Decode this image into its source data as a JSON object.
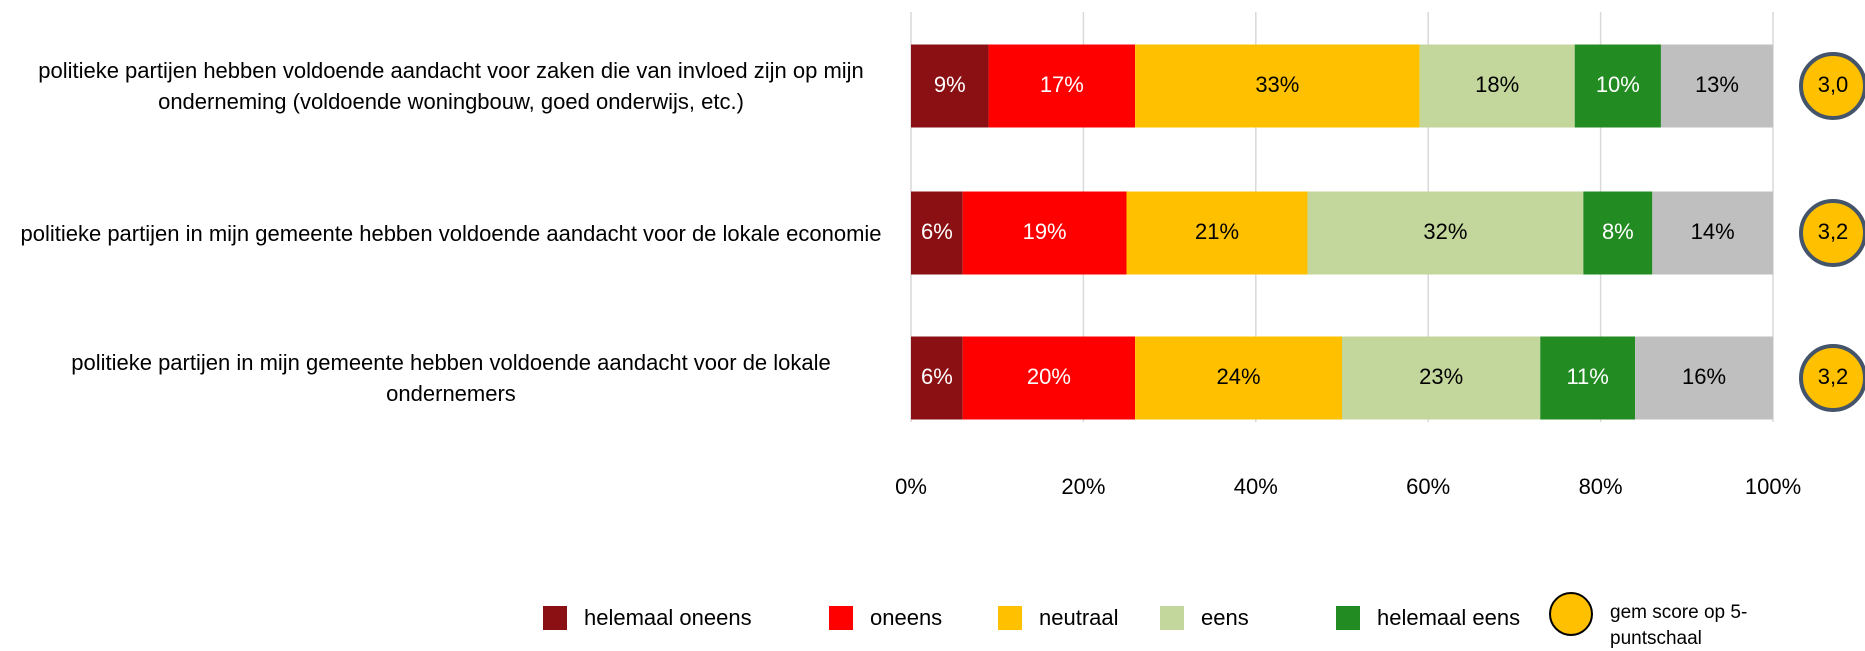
{
  "chart_data": {
    "type": "stacked_bar_horizontal",
    "categories": [
      "politieke partijen hebben voldoende aandacht voor zaken die van invloed zijn op mijn onderneming (voldoende woningbouw, goed onderwijs, etc.)",
      "politieke partijen in mijn gemeente hebben voldoende aandacht voor de lokale economie",
      "politieke partijen in mijn gemeente hebben voldoende aandacht voor de lokale ondernemers"
    ],
    "series": [
      {
        "name": "helemaal oneens",
        "color": "#8b1014",
        "values": [
          9,
          6,
          6
        ],
        "value_labels": [
          "9%",
          "6%",
          "6%"
        ]
      },
      {
        "name": "oneens",
        "color": "#ff0000",
        "values": [
          17,
          19,
          20
        ],
        "value_labels": [
          "17%",
          "19%",
          "20%"
        ]
      },
      {
        "name": "neutraal",
        "color": "#ffc000",
        "values": [
          33,
          21,
          24
        ],
        "value_labels": [
          "33%",
          "21%",
          "24%"
        ]
      },
      {
        "name": "eens",
        "color": "#c3d69b",
        "values": [
          18,
          32,
          23
        ],
        "value_labels": [
          "18%",
          "32%",
          "23%"
        ]
      },
      {
        "name": "helemaal eens",
        "color": "#228b22",
        "values": [
          10,
          8,
          11
        ],
        "value_labels": [
          "10%",
          "8%",
          "11%"
        ]
      },
      {
        "name": null,
        "color": "#bfbfbf",
        "values": [
          13,
          14,
          16
        ],
        "value_labels": [
          "13%",
          "14%",
          "16%"
        ]
      }
    ],
    "score": {
      "name": "gem score op 5-puntschaal",
      "color": "#ffc000",
      "values": [
        3.0,
        3.2,
        3.2
      ],
      "value_labels": [
        "3,0",
        "3,2",
        "3,2"
      ]
    },
    "xlim": [
      0,
      100
    ],
    "xticks": [
      {
        "value": 0,
        "label": "0%"
      },
      {
        "value": 20,
        "label": "20%"
      },
      {
        "value": 40,
        "label": "40%"
      },
      {
        "value": 60,
        "label": "60%"
      },
      {
        "value": 80,
        "label": "80%"
      },
      {
        "value": 100,
        "label": "100%"
      }
    ],
    "grid": true
  }
}
